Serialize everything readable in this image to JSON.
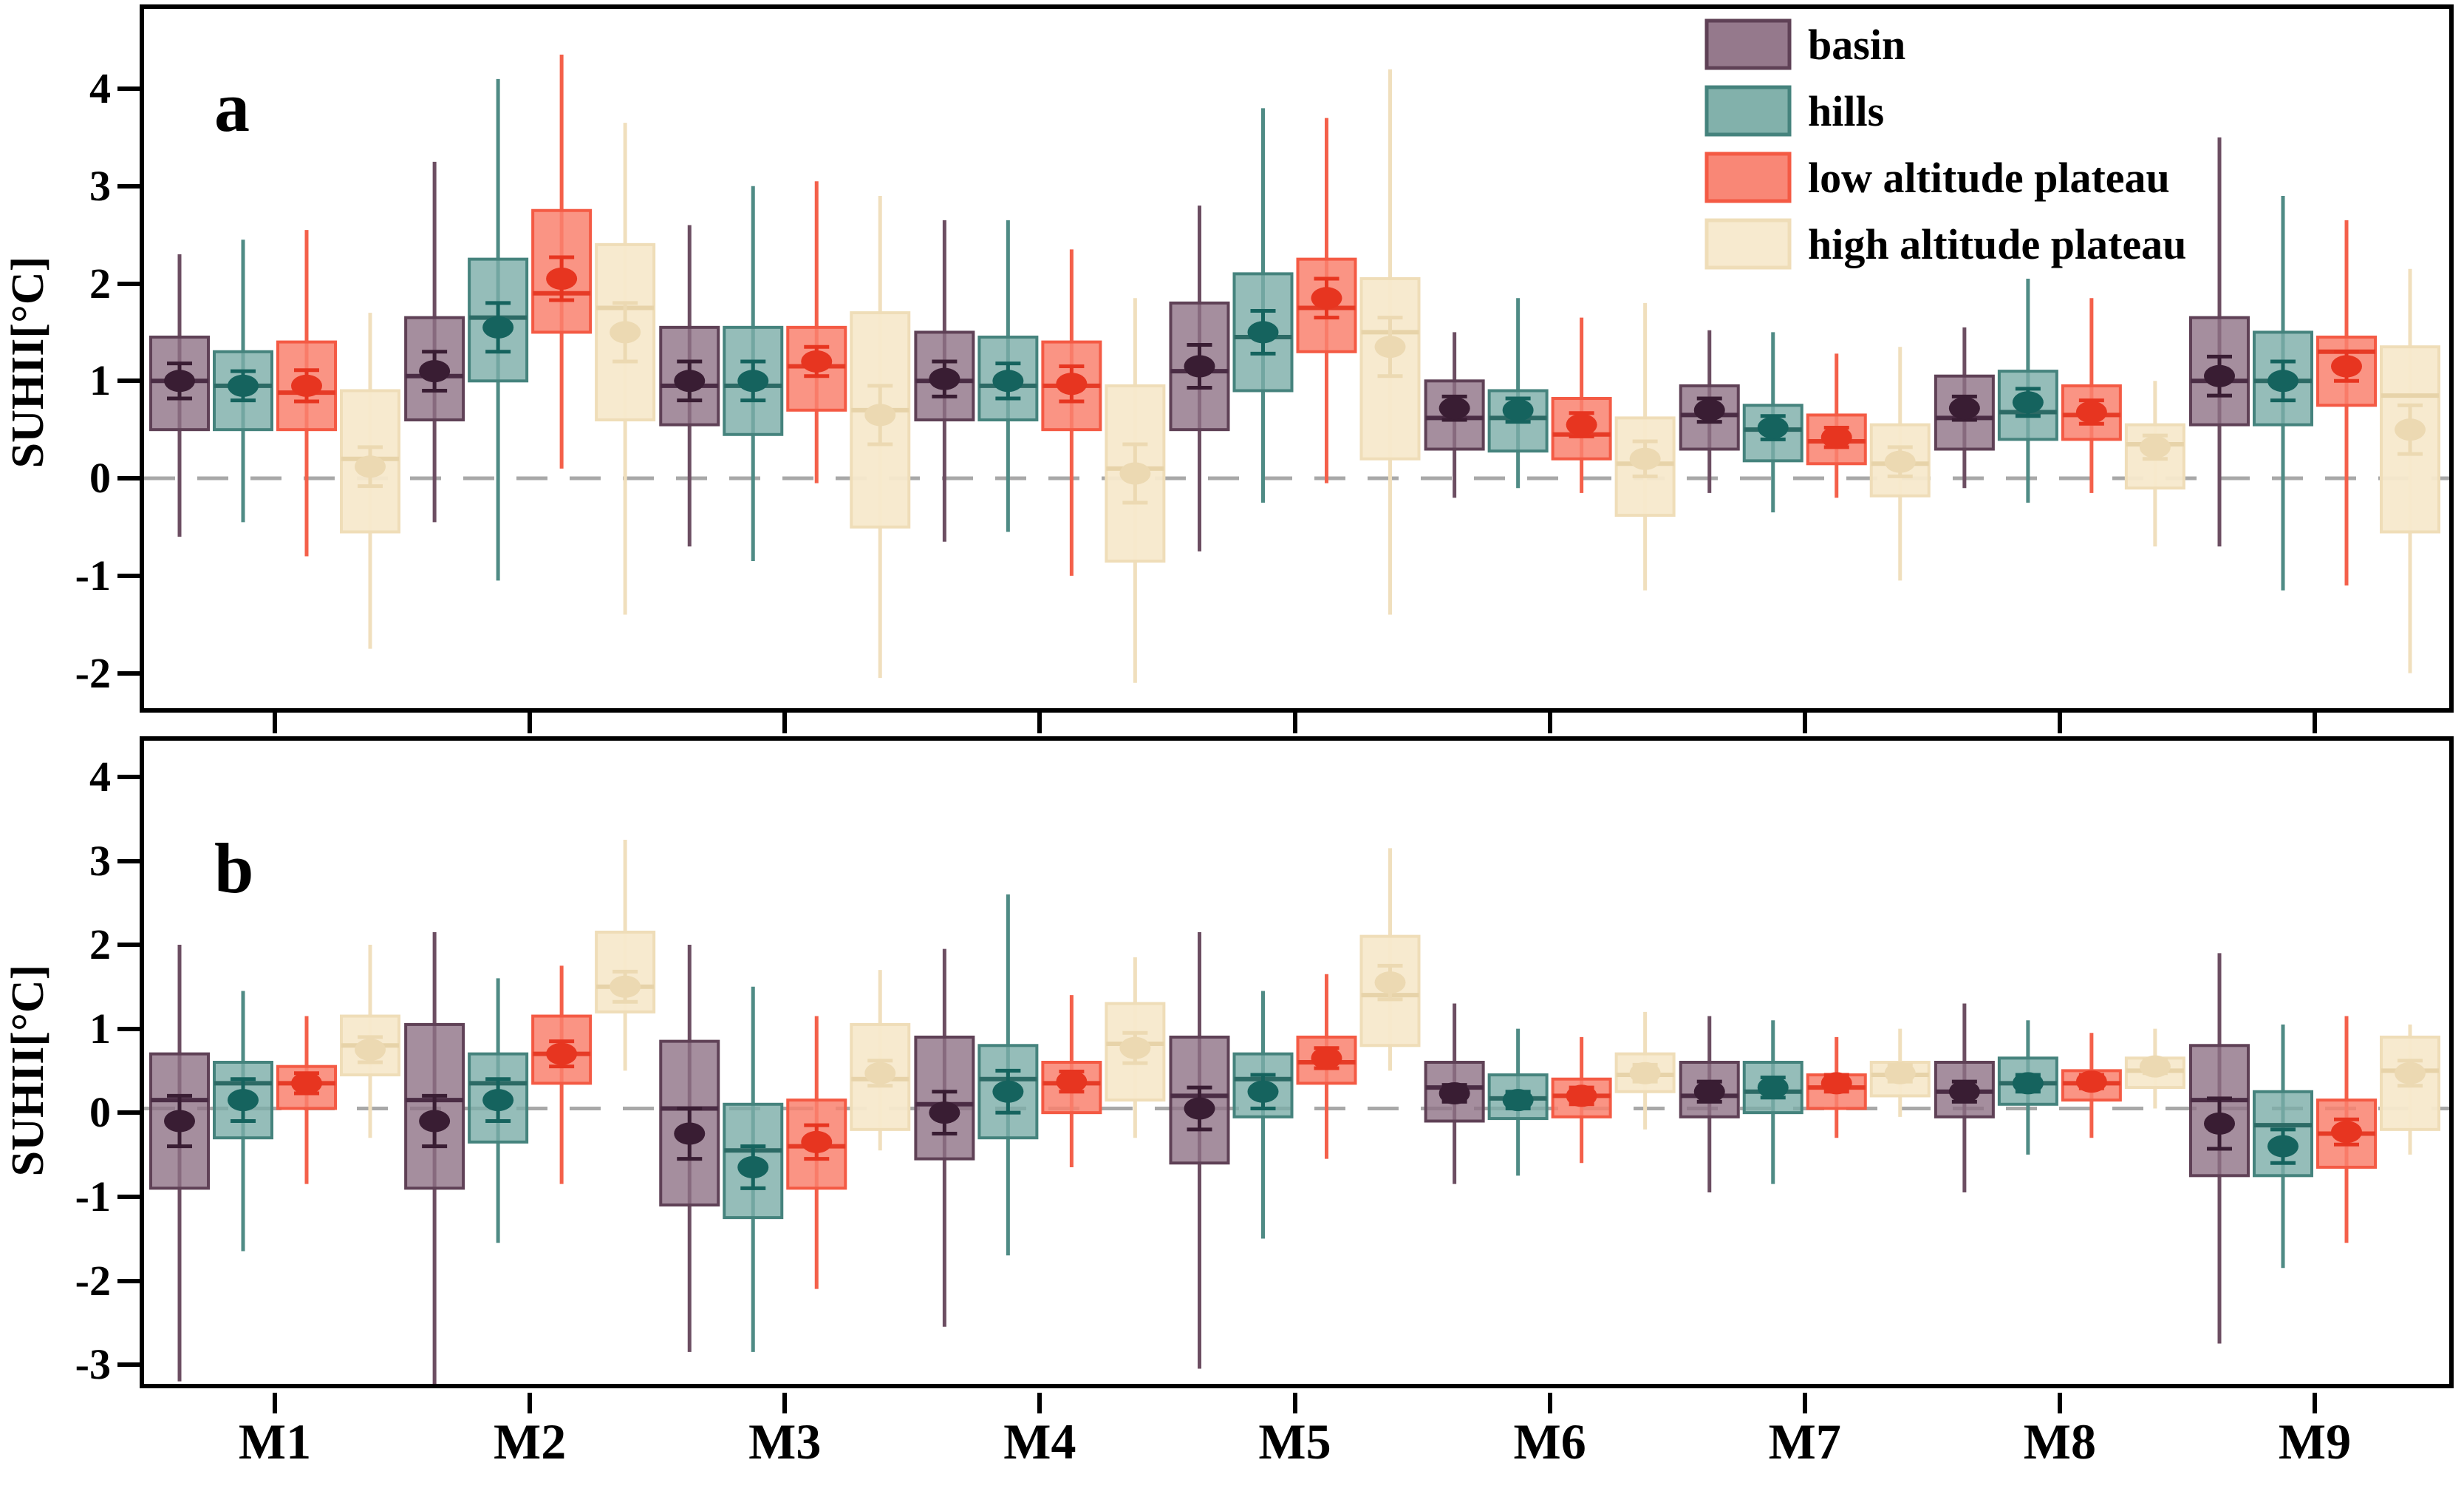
{
  "chart_data": {
    "type": "boxplot",
    "title": "",
    "xlabel": "",
    "categories": [
      "M1",
      "M2",
      "M3",
      "M4",
      "M5",
      "M6",
      "M7",
      "M8",
      "M9"
    ],
    "legend": [
      "basin",
      "hills",
      "low altitude plateau",
      "high altitude plateau"
    ],
    "legend_position": "top-right-panel-a",
    "grid": false,
    "zero_line": true,
    "zero_line_color": "#a8a8a8",
    "box_value_format": "[whisker_low, q1, median, q3, whisker_high, mean, mean_se]",
    "colors": [
      {
        "name": "basin",
        "fill": "#8f7286",
        "stroke": "#5f4156",
        "median": "#4a2c44",
        "dot": "#391d33",
        "whisker": "#6c4e62",
        "fill_opacity": 0.8
      },
      {
        "name": "hills",
        "fill": "#7bada7",
        "stroke": "#45837d",
        "median": "#2c6a65",
        "dot": "#15635e",
        "whisker": "#4f8b85",
        "fill_opacity": 0.8
      },
      {
        "name": "low altitude plateau",
        "fill": "#f9816f",
        "stroke": "#f45a44",
        "median": "#e63b26",
        "dot": "#e73520",
        "whisker": "#f4604a",
        "fill_opacity": 0.85
      },
      {
        "name": "high altitude plateau",
        "fill": "#f7e9cc",
        "stroke": "#efddb8",
        "median": "#e7d3a9",
        "dot": "#ecd9b2",
        "whisker": "#f0dfbd",
        "fill_opacity": 0.95
      }
    ],
    "panels": [
      {
        "label": "a",
        "ylabel": "SUHII[°C]",
        "yticks": [
          4,
          3,
          2,
          1,
          0,
          -1,
          -2
        ],
        "ymax": 4.82,
        "ymin": -2.36,
        "series": [
          {
            "name": "basin",
            "boxes": [
              [
                -0.6,
                0.5,
                1.0,
                1.45,
                2.3,
                1.0,
                0.18
              ],
              [
                -0.45,
                0.6,
                1.05,
                1.65,
                3.25,
                1.1,
                0.2
              ],
              [
                -0.7,
                0.55,
                0.95,
                1.55,
                2.6,
                1.0,
                0.2
              ],
              [
                -0.65,
                0.6,
                1.0,
                1.5,
                2.65,
                1.02,
                0.18
              ],
              [
                -0.75,
                0.5,
                1.1,
                1.8,
                2.8,
                1.15,
                0.22
              ],
              [
                -0.2,
                0.3,
                0.62,
                1.0,
                1.5,
                0.72,
                0.12
              ],
              [
                -0.15,
                0.3,
                0.65,
                0.95,
                1.52,
                0.7,
                0.12
              ],
              [
                -0.1,
                0.3,
                0.62,
                1.05,
                1.55,
                0.72,
                0.12
              ],
              [
                -0.7,
                0.55,
                1.0,
                1.65,
                3.5,
                1.05,
                0.2
              ]
            ]
          },
          {
            "name": "hills",
            "boxes": [
              [
                -0.45,
                0.5,
                0.95,
                1.3,
                2.45,
                0.95,
                0.15
              ],
              [
                -1.05,
                1.0,
                1.65,
                2.25,
                4.1,
                1.55,
                0.25
              ],
              [
                -0.85,
                0.45,
                0.95,
                1.55,
                3.0,
                1.0,
                0.2
              ],
              [
                -0.55,
                0.6,
                0.95,
                1.45,
                2.65,
                1.0,
                0.18
              ],
              [
                -0.25,
                0.9,
                1.45,
                2.1,
                3.8,
                1.5,
                0.22
              ],
              [
                -0.1,
                0.28,
                0.62,
                0.9,
                1.85,
                0.7,
                0.12
              ],
              [
                -0.35,
                0.18,
                0.5,
                0.75,
                1.5,
                0.52,
                0.12
              ],
              [
                -0.25,
                0.4,
                0.68,
                1.1,
                2.05,
                0.78,
                0.14
              ],
              [
                -1.15,
                0.55,
                1.0,
                1.5,
                2.9,
                1.0,
                0.2
              ]
            ]
          },
          {
            "name": "low altitude plateau",
            "boxes": [
              [
                -0.8,
                0.5,
                0.88,
                1.4,
                2.55,
                0.95,
                0.16
              ],
              [
                0.1,
                1.5,
                1.9,
                2.75,
                4.35,
                2.05,
                0.22
              ],
              [
                -0.05,
                0.7,
                1.15,
                1.55,
                3.05,
                1.2,
                0.15
              ],
              [
                -1.0,
                0.5,
                0.95,
                1.4,
                2.35,
                0.97,
                0.18
              ],
              [
                -0.05,
                1.3,
                1.75,
                2.25,
                3.7,
                1.85,
                0.2
              ],
              [
                -0.15,
                0.2,
                0.45,
                0.82,
                1.65,
                0.55,
                0.12
              ],
              [
                -0.2,
                0.15,
                0.38,
                0.65,
                1.28,
                0.42,
                0.1
              ],
              [
                -0.15,
                0.4,
                0.65,
                0.95,
                1.85,
                0.68,
                0.12
              ],
              [
                -1.1,
                0.75,
                1.3,
                1.45,
                2.65,
                1.15,
                0.15
              ]
            ]
          },
          {
            "name": "high altitude plateau",
            "boxes": [
              [
                -1.75,
                -0.55,
                0.2,
                0.9,
                1.7,
                0.12,
                0.2
              ],
              [
                -1.4,
                0.6,
                1.75,
                2.4,
                3.65,
                1.5,
                0.3
              ],
              [
                -2.05,
                -0.5,
                0.7,
                1.7,
                2.9,
                0.65,
                0.3
              ],
              [
                -2.1,
                -0.85,
                0.1,
                0.95,
                1.85,
                0.05,
                0.3
              ],
              [
                -1.4,
                0.2,
                1.5,
                2.05,
                4.2,
                1.35,
                0.3
              ],
              [
                -1.15,
                -0.38,
                0.15,
                0.62,
                1.8,
                0.2,
                0.18
              ],
              [
                -1.05,
                -0.18,
                0.15,
                0.55,
                1.35,
                0.17,
                0.15
              ],
              [
                -0.7,
                -0.1,
                0.35,
                0.55,
                1.0,
                0.32,
                0.12
              ],
              [
                -2.0,
                -0.55,
                0.85,
                1.35,
                2.15,
                0.5,
                0.25
              ]
            ]
          }
        ]
      },
      {
        "label": "b",
        "ylabel": "SUHII[°C]",
        "yticks": [
          4,
          3,
          2,
          1,
          0,
          -1,
          -2,
          -3
        ],
        "ymax": 4.38,
        "ymin": -3.28,
        "series": [
          {
            "name": "basin",
            "boxes": [
              [
                -3.25,
                -0.95,
                0.1,
                0.65,
                1.95,
                -0.15,
                0.3
              ],
              [
                -3.45,
                -0.95,
                0.1,
                1.0,
                2.1,
                -0.15,
                0.3
              ],
              [
                -2.9,
                -1.15,
                0.0,
                0.8,
                1.95,
                -0.3,
                0.3
              ],
              [
                -2.6,
                -0.6,
                0.05,
                0.85,
                1.9,
                -0.05,
                0.25
              ],
              [
                -3.1,
                -0.65,
                0.15,
                0.85,
                2.1,
                0.0,
                0.25
              ],
              [
                -0.9,
                -0.15,
                0.25,
                0.55,
                1.25,
                0.18,
                0.1
              ],
              [
                -1.0,
                -0.1,
                0.15,
                0.55,
                1.1,
                0.2,
                0.12
              ],
              [
                -1.0,
                -0.1,
                0.2,
                0.55,
                1.25,
                0.2,
                0.12
              ],
              [
                -2.8,
                -0.8,
                0.1,
                0.75,
                1.85,
                -0.18,
                0.3
              ]
            ]
          },
          {
            "name": "hills",
            "boxes": [
              [
                -1.7,
                -0.35,
                0.3,
                0.55,
                1.4,
                0.1,
                0.25
              ],
              [
                -1.6,
                -0.4,
                0.3,
                0.65,
                1.55,
                0.1,
                0.25
              ],
              [
                -2.9,
                -1.3,
                -0.5,
                0.05,
                1.45,
                -0.7,
                0.25
              ],
              [
                -1.75,
                -0.35,
                0.35,
                0.75,
                2.55,
                0.2,
                0.25
              ],
              [
                -1.55,
                -0.1,
                0.35,
                0.65,
                1.4,
                0.2,
                0.2
              ],
              [
                -0.8,
                -0.12,
                0.12,
                0.4,
                0.95,
                0.1,
                0.1
              ],
              [
                -0.9,
                -0.05,
                0.2,
                0.55,
                1.05,
                0.25,
                0.12
              ],
              [
                -0.55,
                0.05,
                0.3,
                0.6,
                1.05,
                0.3,
                0.1
              ],
              [
                -1.9,
                -0.8,
                -0.2,
                0.2,
                1.0,
                -0.45,
                0.2
              ]
            ]
          },
          {
            "name": "low altitude plateau",
            "boxes": [
              [
                -0.9,
                0.0,
                0.3,
                0.5,
                1.1,
                0.3,
                0.12
              ],
              [
                -0.9,
                0.3,
                0.65,
                1.1,
                1.7,
                0.65,
                0.15
              ],
              [
                -2.15,
                -0.95,
                -0.45,
                0.1,
                1.1,
                -0.4,
                0.2
              ],
              [
                -0.7,
                -0.05,
                0.3,
                0.55,
                1.35,
                0.32,
                0.12
              ],
              [
                -0.6,
                0.3,
                0.55,
                0.85,
                1.6,
                0.6,
                0.12
              ],
              [
                -0.65,
                -0.1,
                0.15,
                0.35,
                0.85,
                0.15,
                0.1
              ],
              [
                -0.35,
                0.0,
                0.25,
                0.4,
                0.85,
                0.3,
                0.1
              ],
              [
                -0.35,
                0.1,
                0.3,
                0.45,
                0.9,
                0.32,
                0.08
              ],
              [
                -1.6,
                -0.7,
                -0.3,
                0.1,
                1.1,
                -0.28,
                0.15
              ]
            ]
          },
          {
            "name": "high altitude plateau",
            "boxes": [
              [
                -0.35,
                0.4,
                0.75,
                1.1,
                1.95,
                0.7,
                0.15
              ],
              [
                0.45,
                1.15,
                1.45,
                2.1,
                3.2,
                1.45,
                0.18
              ],
              [
                -0.5,
                -0.25,
                0.35,
                1.0,
                1.65,
                0.42,
                0.15
              ],
              [
                -0.35,
                0.1,
                0.77,
                1.25,
                1.8,
                0.72,
                0.18
              ],
              [
                0.45,
                0.75,
                1.35,
                2.05,
                3.1,
                1.5,
                0.2
              ],
              [
                -0.25,
                0.2,
                0.4,
                0.65,
                1.15,
                0.42,
                0.1
              ],
              [
                -0.1,
                0.15,
                0.4,
                0.55,
                0.95,
                0.42,
                0.1
              ],
              [
                0.0,
                0.25,
                0.45,
                0.6,
                0.95,
                0.5,
                0.08
              ],
              [
                -0.55,
                -0.25,
                0.45,
                0.85,
                1.0,
                0.42,
                0.15
              ]
            ]
          }
        ]
      }
    ]
  }
}
